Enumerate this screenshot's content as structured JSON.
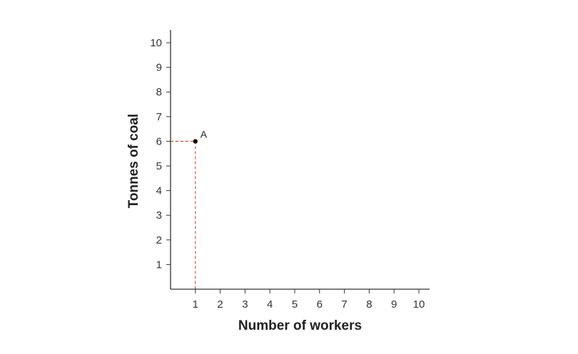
{
  "chart_data": {
    "type": "scatter",
    "title": "",
    "xlabel": "Number of workers",
    "ylabel": "Tonnes of coal",
    "xlim": [
      0,
      10
    ],
    "ylim": [
      0,
      10
    ],
    "x_ticks": [
      "1",
      "2",
      "3",
      "4",
      "5",
      "6",
      "7",
      "8",
      "9",
      "10"
    ],
    "y_ticks": [
      "1",
      "2",
      "3",
      "4",
      "5",
      "6",
      "7",
      "8",
      "9",
      "10"
    ],
    "grid": false,
    "points": [
      {
        "label": "A",
        "x": 1,
        "y": 6
      }
    ],
    "guide_lines": {
      "style": "dashed",
      "color": "#d9542b"
    },
    "colors": {
      "axis": "#333333",
      "point": "#111111",
      "guide": "#d9542b"
    }
  }
}
